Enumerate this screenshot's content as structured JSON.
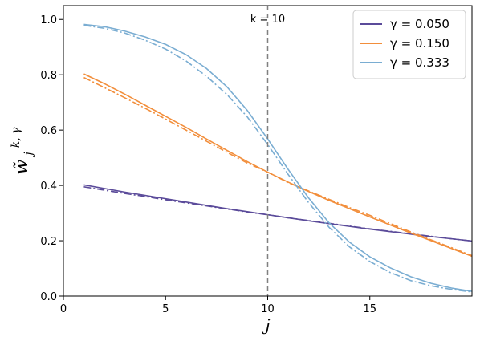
{
  "chart_data": {
    "type": "line",
    "title": "",
    "xlabel": "j",
    "ylabel": "w̃ⱼ^(k,γ)",
    "ylabel_main": "w̃",
    "ylabel_sub": "j",
    "ylabel_sup": "k, γ",
    "xlim": [
      0,
      20
    ],
    "ylim": [
      0.0,
      1.05
    ],
    "xticks": [
      0,
      5,
      10,
      15
    ],
    "xtick_labels": [
      "0",
      "5",
      "10",
      "15"
    ],
    "yticks": [
      0.0,
      0.2,
      0.4,
      0.6,
      0.8,
      1.0
    ],
    "ytick_labels": [
      "0.0",
      "0.2",
      "0.4",
      "0.6",
      "0.8",
      "1.0"
    ],
    "grid": false,
    "legend_position": "top-right",
    "vline": {
      "x": 10,
      "label": "k = 10",
      "color": "#808080"
    },
    "x": [
      1,
      2,
      3,
      4,
      5,
      6,
      7,
      8,
      9,
      10,
      11,
      12,
      13,
      14,
      15,
      16,
      17,
      18,
      19,
      20
    ],
    "series": [
      {
        "name": "γ = 0.050",
        "color": "#5b4b9a",
        "solid": [
          0.402,
          0.389,
          0.376,
          0.364,
          0.352,
          0.34,
          0.328,
          0.316,
          0.305,
          0.294,
          0.283,
          0.272,
          0.262,
          0.252,
          0.242,
          0.233,
          0.224,
          0.215,
          0.207,
          0.199
        ],
        "dashdot": [
          0.395,
          0.383,
          0.371,
          0.36,
          0.348,
          0.337,
          0.326,
          0.315,
          0.304,
          0.294,
          0.283,
          0.273,
          0.263,
          0.253,
          0.243,
          0.234,
          0.225,
          0.216,
          0.207,
          0.199
        ]
      },
      {
        "name": "γ = 0.150",
        "color": "#f28e3b",
        "solid": [
          0.803,
          0.768,
          0.73,
          0.69,
          0.65,
          0.61,
          0.568,
          0.527,
          0.486,
          0.448,
          0.412,
          0.378,
          0.346,
          0.316,
          0.286,
          0.257,
          0.228,
          0.2,
          0.172,
          0.144
        ],
        "dashdot": [
          0.79,
          0.754,
          0.717,
          0.679,
          0.64,
          0.6,
          0.56,
          0.52,
          0.481,
          0.448,
          0.41,
          0.38,
          0.35,
          0.32,
          0.292,
          0.262,
          0.232,
          0.203,
          0.175,
          0.146
        ]
      },
      {
        "name": "γ = 0.333",
        "color": "#7aadd2",
        "solid": [
          0.982,
          0.974,
          0.958,
          0.937,
          0.91,
          0.873,
          0.823,
          0.757,
          0.671,
          0.568,
          0.458,
          0.355,
          0.265,
          0.195,
          0.142,
          0.102,
          0.07,
          0.046,
          0.029,
          0.017
        ],
        "dashdot": [
          0.979,
          0.968,
          0.951,
          0.925,
          0.893,
          0.85,
          0.795,
          0.729,
          0.648,
          0.548,
          0.44,
          0.338,
          0.249,
          0.178,
          0.125,
          0.085,
          0.056,
          0.037,
          0.024,
          0.015
        ]
      }
    ]
  }
}
